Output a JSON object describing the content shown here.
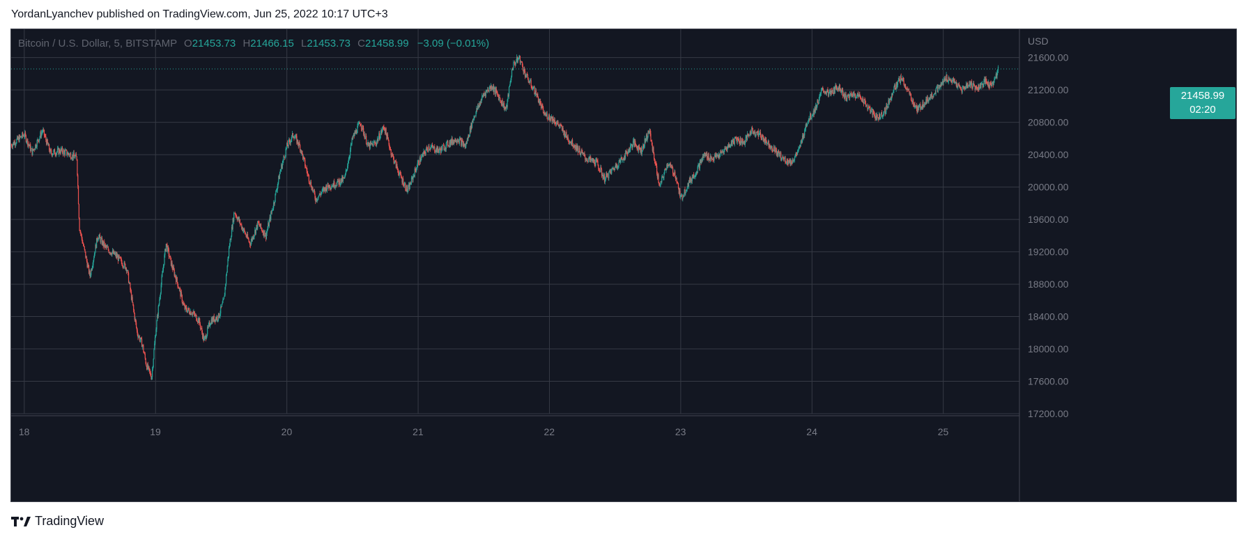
{
  "header": {
    "title": "YordanLyanchev published on TradingView.com, Jun 25, 2022 10:17 UTC+3"
  },
  "legend": {
    "symbol": "Bitcoin / U.S. Dollar, 5, BITSTAMP",
    "open_label": "O",
    "open": "21453.73",
    "high_label": "H",
    "high": "21466.15",
    "low_label": "L",
    "low": "21453.73",
    "close_label": "C",
    "close": "21458.99",
    "change": "−3.09 (−0.01%)"
  },
  "price_badge": {
    "price": "21458.99",
    "countdown": "02:20"
  },
  "footer": {
    "brand": "TradingView"
  },
  "colors": {
    "background": "#131722",
    "grid": "#363a45",
    "up": "#26a69a",
    "down": "#ef5350",
    "axis_text": "#787b86"
  },
  "chart_data": {
    "type": "candlestick",
    "interval": "5m",
    "currency": "USD",
    "y_axis_label": "USD",
    "ylim": [
      17200,
      21950
    ],
    "y_ticks": [
      17200,
      17600,
      18000,
      18400,
      18800,
      19200,
      19600,
      20000,
      20400,
      20800,
      21200,
      21600
    ],
    "y_tick_labels": [
      "17200.00",
      "17600.00",
      "18000.00",
      "18400.00",
      "18800.00",
      "19200.00",
      "19600.00",
      "20000.00",
      "20400.00",
      "20800.00",
      "21200.00",
      "21600.00"
    ],
    "x_range_days": [
      17.9,
      25.58
    ],
    "x_ticks": [
      18,
      19,
      20,
      21,
      22,
      23,
      24,
      25
    ],
    "x_tick_labels": [
      "18",
      "19",
      "20",
      "21",
      "22",
      "23",
      "24",
      "25"
    ],
    "last_price": 21458.99,
    "grid": true,
    "path_keypoints": [
      [
        17.9,
        20520
      ],
      [
        18.0,
        20650
      ],
      [
        18.06,
        20430
      ],
      [
        18.14,
        20700
      ],
      [
        18.2,
        20420
      ],
      [
        18.28,
        20450
      ],
      [
        18.35,
        20400
      ],
      [
        18.4,
        20360
      ],
      [
        18.42,
        19500
      ],
      [
        18.46,
        19200
      ],
      [
        18.5,
        18900
      ],
      [
        18.56,
        19400
      ],
      [
        18.62,
        19250
      ],
      [
        18.7,
        19150
      ],
      [
        18.78,
        19000
      ],
      [
        18.82,
        18600
      ],
      [
        18.86,
        18200
      ],
      [
        18.9,
        18050
      ],
      [
        18.93,
        17800
      ],
      [
        18.97,
        17650
      ],
      [
        19.0,
        18200
      ],
      [
        19.05,
        18900
      ],
      [
        19.08,
        19300
      ],
      [
        19.12,
        19050
      ],
      [
        19.17,
        18800
      ],
      [
        19.22,
        18500
      ],
      [
        19.28,
        18450
      ],
      [
        19.33,
        18350
      ],
      [
        19.37,
        18100
      ],
      [
        19.42,
        18350
      ],
      [
        19.48,
        18400
      ],
      [
        19.52,
        18600
      ],
      [
        19.56,
        19250
      ],
      [
        19.6,
        19700
      ],
      [
        19.66,
        19500
      ],
      [
        19.72,
        19300
      ],
      [
        19.78,
        19550
      ],
      [
        19.84,
        19400
      ],
      [
        19.9,
        19800
      ],
      [
        19.95,
        20200
      ],
      [
        20.0,
        20500
      ],
      [
        20.05,
        20650
      ],
      [
        20.1,
        20500
      ],
      [
        20.16,
        20150
      ],
      [
        20.22,
        19850
      ],
      [
        20.3,
        20000
      ],
      [
        20.38,
        20050
      ],
      [
        20.44,
        20100
      ],
      [
        20.5,
        20600
      ],
      [
        20.56,
        20800
      ],
      [
        20.62,
        20500
      ],
      [
        20.68,
        20550
      ],
      [
        20.74,
        20750
      ],
      [
        20.8,
        20400
      ],
      [
        20.86,
        20150
      ],
      [
        20.92,
        19950
      ],
      [
        21.0,
        20300
      ],
      [
        21.08,
        20500
      ],
      [
        21.16,
        20450
      ],
      [
        21.24,
        20550
      ],
      [
        21.3,
        20600
      ],
      [
        21.36,
        20500
      ],
      [
        21.42,
        20850
      ],
      [
        21.5,
        21150
      ],
      [
        21.56,
        21250
      ],
      [
        21.62,
        21100
      ],
      [
        21.67,
        20950
      ],
      [
        21.72,
        21500
      ],
      [
        21.77,
        21600
      ],
      [
        21.82,
        21380
      ],
      [
        21.9,
        21150
      ],
      [
        21.96,
        20900
      ],
      [
        22.02,
        20850
      ],
      [
        22.08,
        20750
      ],
      [
        22.14,
        20600
      ],
      [
        22.2,
        20500
      ],
      [
        22.28,
        20350
      ],
      [
        22.36,
        20300
      ],
      [
        22.42,
        20100
      ],
      [
        22.5,
        20250
      ],
      [
        22.58,
        20400
      ],
      [
        22.64,
        20550
      ],
      [
        22.7,
        20450
      ],
      [
        22.76,
        20700
      ],
      [
        22.8,
        20350
      ],
      [
        22.84,
        20000
      ],
      [
        22.9,
        20300
      ],
      [
        22.96,
        20150
      ],
      [
        23.0,
        19850
      ],
      [
        23.06,
        20050
      ],
      [
        23.12,
        20200
      ],
      [
        23.18,
        20400
      ],
      [
        23.24,
        20350
      ],
      [
        23.3,
        20400
      ],
      [
        23.36,
        20500
      ],
      [
        23.42,
        20600
      ],
      [
        23.48,
        20550
      ],
      [
        23.54,
        20700
      ],
      [
        23.6,
        20650
      ],
      [
        23.66,
        20550
      ],
      [
        23.72,
        20450
      ],
      [
        23.78,
        20350
      ],
      [
        23.84,
        20300
      ],
      [
        23.9,
        20450
      ],
      [
        23.96,
        20800
      ],
      [
        24.02,
        20950
      ],
      [
        24.08,
        21200
      ],
      [
        24.14,
        21150
      ],
      [
        24.2,
        21250
      ],
      [
        24.26,
        21100
      ],
      [
        24.32,
        21150
      ],
      [
        24.38,
        21100
      ],
      [
        24.44,
        20950
      ],
      [
        24.5,
        20850
      ],
      [
        24.56,
        20950
      ],
      [
        24.62,
        21200
      ],
      [
        24.68,
        21350
      ],
      [
        24.74,
        21150
      ],
      [
        24.8,
        20950
      ],
      [
        24.86,
        21050
      ],
      [
        24.92,
        21150
      ],
      [
        24.98,
        21250
      ],
      [
        25.02,
        21350
      ],
      [
        25.08,
        21300
      ],
      [
        25.14,
        21200
      ],
      [
        25.2,
        21280
      ],
      [
        25.26,
        21220
      ],
      [
        25.32,
        21300
      ],
      [
        25.36,
        21250
      ],
      [
        25.4,
        21350
      ],
      [
        25.42,
        21459
      ]
    ]
  }
}
